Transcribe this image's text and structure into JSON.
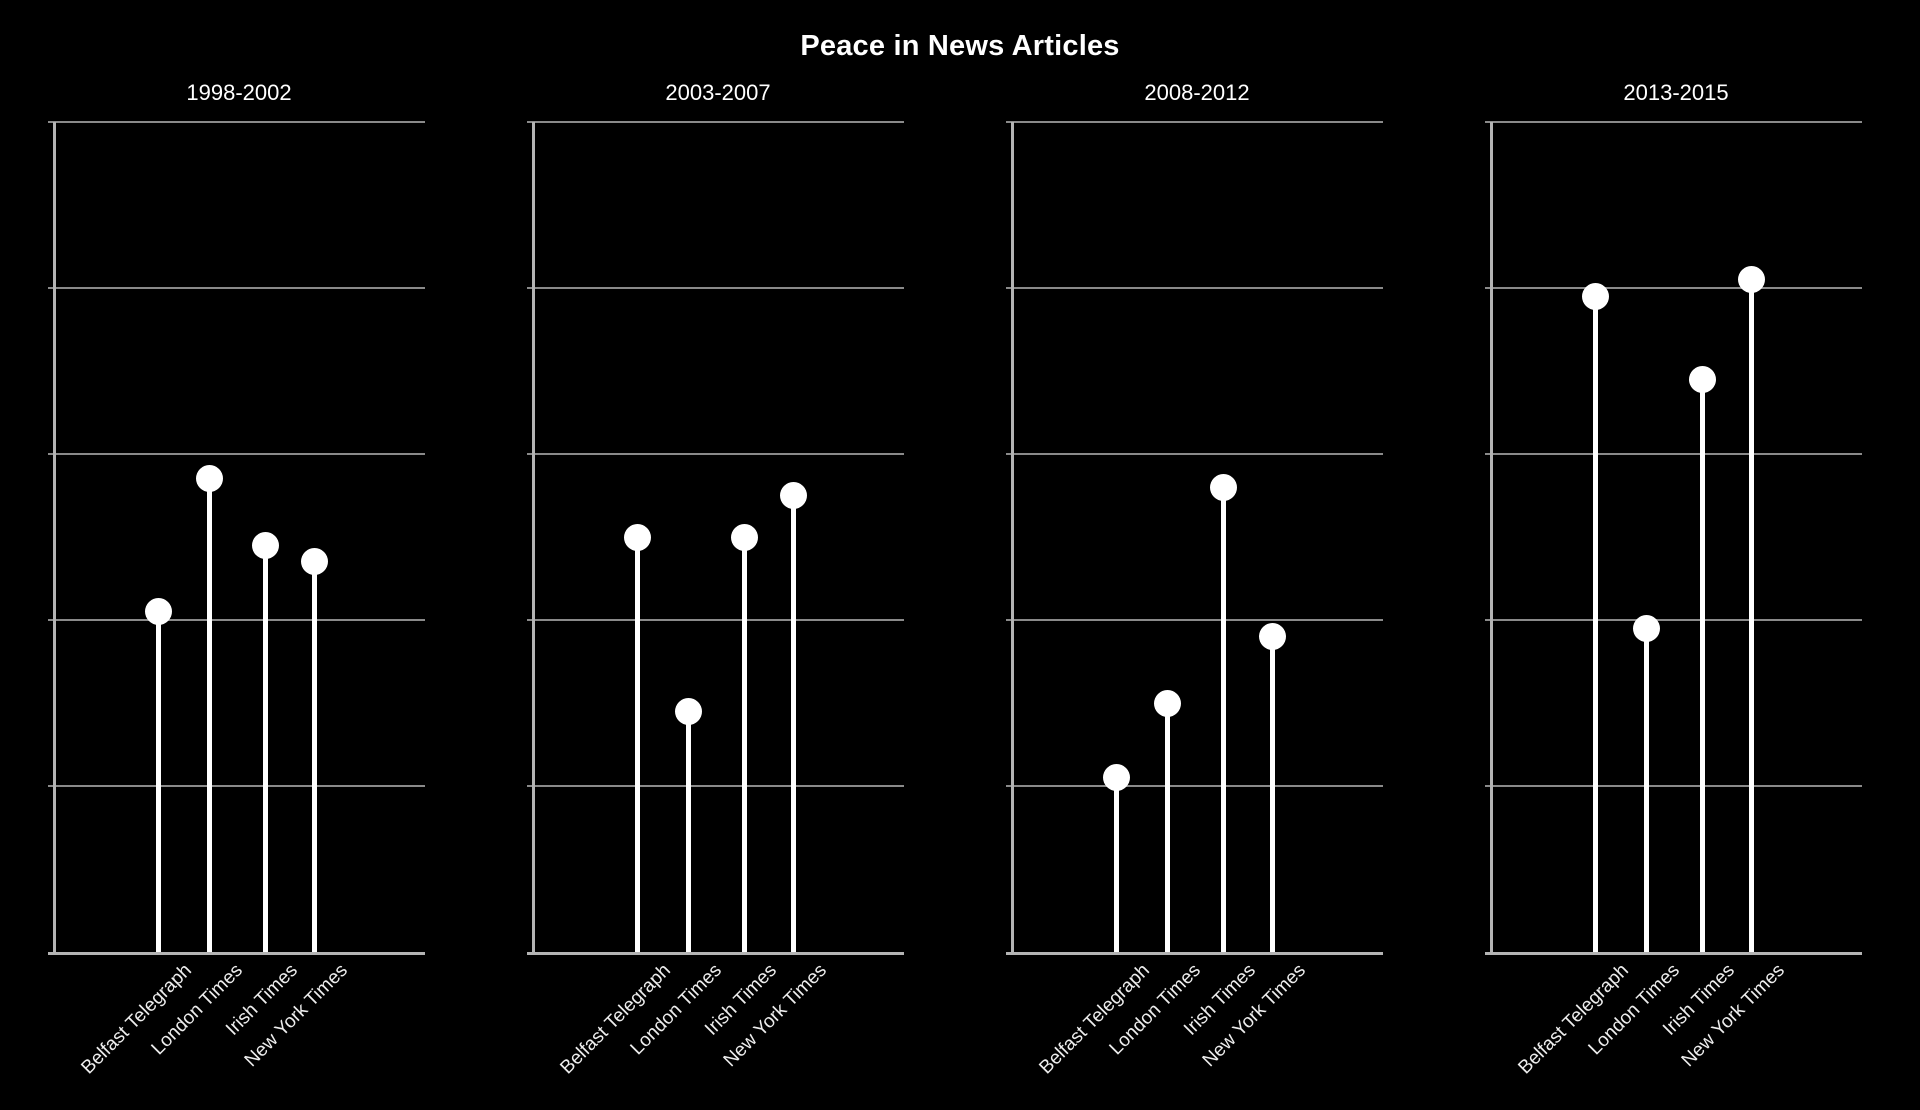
{
  "title": "Peace in News Articles",
  "chart_data": {
    "type": "scatter",
    "variant": "lollipop-stem-plot-small-multiples",
    "title": "Peace in News Articles",
    "categories": [
      "Belfast Telegraph",
      "London Times",
      "Irish Times",
      "New York Times"
    ],
    "facets": [
      {
        "label": "1998-2002",
        "values": [
          2.05,
          2.85,
          2.45,
          2.35
        ]
      },
      {
        "label": "2003-2007",
        "values": [
          2.5,
          1.45,
          2.5,
          2.75
        ]
      },
      {
        "label": "2008-2012",
        "values": [
          1.05,
          1.5,
          2.8,
          1.9
        ]
      },
      {
        "label": "2013-2015",
        "values": [
          3.95,
          1.95,
          3.45,
          4.05
        ]
      }
    ],
    "y_axis": {
      "ylim": [
        0,
        5
      ],
      "gridline_units": [
        0,
        1,
        2,
        3,
        4,
        5
      ],
      "tick_labels_visible": false
    },
    "x_axis": {
      "tick_label_rotation_deg": 45
    },
    "legend": "none",
    "grid": "horizontal",
    "colors": {
      "background": "#000000",
      "marker": "#ffffff",
      "stem": "#ffffff",
      "gridline": "#8a8a8a",
      "spine": "#b4b4b4",
      "title_text": "#ffffff",
      "facet_title_text": "#ffffff",
      "tick_label_text": "#ededed"
    }
  }
}
